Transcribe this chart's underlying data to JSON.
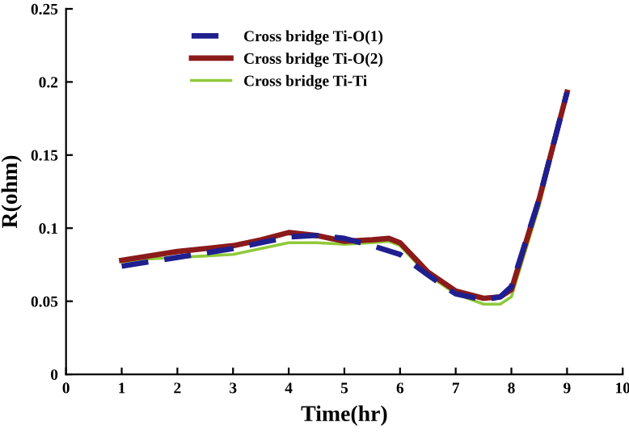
{
  "chart_data": {
    "type": "line",
    "xlabel": "Time(hr)",
    "ylabel": "R(ohm)",
    "xlim": [
      0,
      10
    ],
    "xticks": [
      0,
      1,
      2,
      3,
      4,
      5,
      6,
      7,
      8,
      9,
      10
    ],
    "ylim": [
      0,
      0.25
    ],
    "yticks": [
      0,
      0.05,
      0.1,
      0.15,
      0.2,
      0.25
    ],
    "grid": false,
    "legend": "top left",
    "marker": "none",
    "series": [
      {
        "name": "Cross bridge Ti-O(1)",
        "color": "#1f1f8f",
        "line_style": "dashed",
        "x": [
          1,
          1.5,
          2,
          2.5,
          3,
          3.5,
          4,
          4.5,
          5,
          5.5,
          6,
          6.5,
          7,
          7.5,
          7.8,
          8,
          8.5,
          9
        ],
        "values": [
          0.074,
          0.077,
          0.08,
          0.083,
          0.086,
          0.09,
          0.094,
          0.095,
          0.093,
          0.088,
          0.082,
          0.068,
          0.055,
          0.051,
          0.053,
          0.06,
          0.12,
          0.193
        ]
      },
      {
        "name": "Cross bridge Ti-O(2)",
        "color": "#8b1a1a",
        "line_style": "solid",
        "x": [
          1,
          1.5,
          2,
          2.5,
          3,
          3.5,
          4,
          4.5,
          5,
          5.5,
          5.8,
          6,
          6.5,
          7,
          7.5,
          7.8,
          8,
          8.5,
          9
        ],
        "values": [
          0.078,
          0.081,
          0.084,
          0.086,
          0.088,
          0.092,
          0.097,
          0.095,
          0.091,
          0.092,
          0.093,
          0.09,
          0.07,
          0.057,
          0.052,
          0.053,
          0.058,
          0.12,
          0.193
        ]
      },
      {
        "name": "Cross bridge Ti-Ti",
        "color": "#8fc93a",
        "line_style": "solid",
        "x": [
          1,
          1.5,
          2,
          2.5,
          3,
          3.5,
          4,
          4.5,
          5,
          5.5,
          5.8,
          6,
          6.5,
          7,
          7.5,
          7.8,
          8,
          8.5,
          9
        ],
        "values": [
          0.077,
          0.079,
          0.08,
          0.081,
          0.082,
          0.086,
          0.09,
          0.09,
          0.089,
          0.09,
          0.091,
          0.088,
          0.068,
          0.055,
          0.048,
          0.048,
          0.053,
          0.115,
          0.193
        ]
      }
    ]
  }
}
